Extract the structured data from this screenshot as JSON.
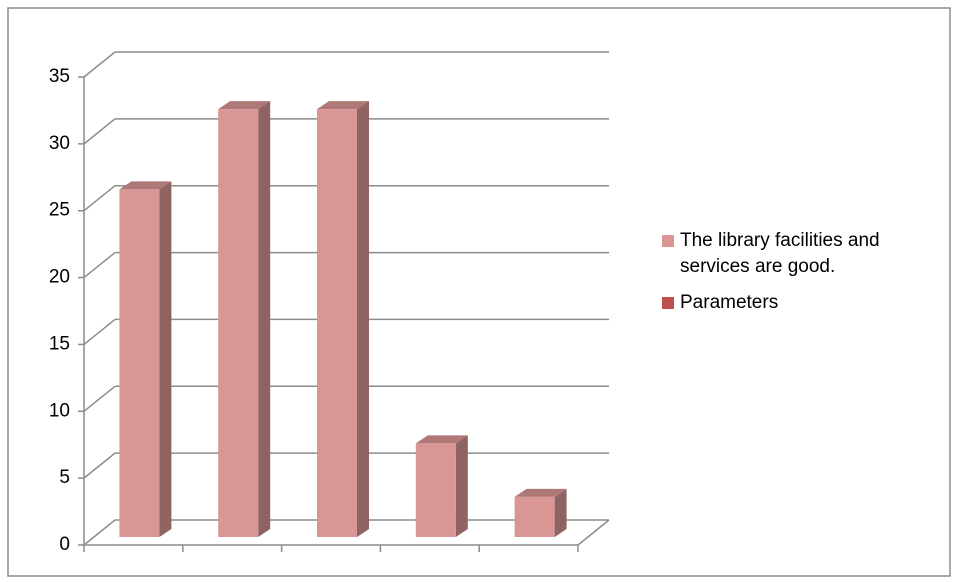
{
  "chart_data": {
    "type": "bar3d",
    "categories": [
      null,
      null,
      null,
      null,
      null
    ],
    "series": [
      {
        "name": "The library facilities and services are good.",
        "color": "#d99694",
        "values": [
          26,
          32,
          32,
          7,
          3
        ]
      },
      {
        "name": "Parameters",
        "color": "#c0504d",
        "values": [
          null,
          null,
          null,
          null,
          null
        ]
      }
    ],
    "ylim": [
      0,
      35
    ],
    "yticks": [
      0,
      5,
      10,
      15,
      20,
      25,
      30,
      35
    ],
    "grid": true,
    "legend": "right"
  }
}
